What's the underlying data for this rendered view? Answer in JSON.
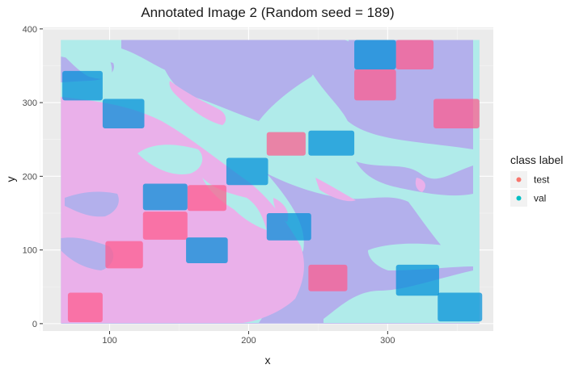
{
  "chart_data": {
    "type": "scatter",
    "title": "Annotated Image 2 (Random seed = 189)",
    "xlabel": "x",
    "ylabel": "y",
    "xlim": [
      52,
      376
    ],
    "ylim": [
      -10,
      402
    ],
    "x_ticks": [
      100,
      200,
      300
    ],
    "y_ticks": [
      0,
      100,
      200,
      300,
      400
    ],
    "grid": true,
    "legend": {
      "title": "class label",
      "placement": "right",
      "entries": [
        {
          "label": "test",
          "color": "#f8766d"
        },
        {
          "label": "val",
          "color": "#00bfc4"
        }
      ]
    },
    "background_image": {
      "extent_x": [
        65,
        366
      ],
      "extent_y": [
        0,
        385
      ],
      "colors": {
        "pink": "#eab0ea",
        "cyan": "#b0ebea",
        "lavender": "#b3b0ec"
      }
    },
    "boxes": [
      {
        "class": "test",
        "x": [
          70,
          95
        ],
        "y": [
          2,
          42
        ]
      },
      {
        "class": "test",
        "x": [
          97,
          124
        ],
        "y": [
          75,
          112
        ]
      },
      {
        "class": "test",
        "x": [
          124,
          156
        ],
        "y": [
          114,
          152
        ]
      },
      {
        "class": "test",
        "x": [
          156,
          184
        ],
        "y": [
          153,
          188
        ]
      },
      {
        "class": "test",
        "x": [
          213,
          241
        ],
        "y": [
          228,
          260
        ]
      },
      {
        "class": "test",
        "x": [
          243,
          271
        ],
        "y": [
          44,
          80
        ]
      },
      {
        "class": "test",
        "x": [
          276,
          306
        ],
        "y": [
          303,
          345
        ]
      },
      {
        "class": "test",
        "x": [
          306,
          333
        ],
        "y": [
          345,
          385
        ]
      },
      {
        "class": "test",
        "x": [
          333,
          366
        ],
        "y": [
          265,
          305
        ]
      },
      {
        "class": "val",
        "x": [
          66,
          95
        ],
        "y": [
          303,
          343
        ]
      },
      {
        "class": "val",
        "x": [
          95,
          125
        ],
        "y": [
          265,
          305
        ]
      },
      {
        "class": "val",
        "x": [
          124,
          156
        ],
        "y": [
          154,
          190
        ]
      },
      {
        "class": "val",
        "x": [
          184,
          214
        ],
        "y": [
          188,
          225
        ]
      },
      {
        "class": "val",
        "x": [
          243,
          276
        ],
        "y": [
          228,
          262
        ]
      },
      {
        "class": "val",
        "x": [
          155,
          185
        ],
        "y": [
          82,
          117
        ]
      },
      {
        "class": "val",
        "x": [
          213,
          245
        ],
        "y": [
          113,
          150
        ]
      },
      {
        "class": "val",
        "x": [
          276,
          306
        ],
        "y": [
          345,
          385
        ]
      },
      {
        "class": "val",
        "x": [
          306,
          337
        ],
        "y": [
          38,
          80
        ]
      },
      {
        "class": "val",
        "x": [
          336,
          368
        ],
        "y": [
          3,
          42
        ]
      }
    ],
    "box_colors": {
      "test": "#ff5a8c",
      "val": "#008fd8"
    }
  }
}
